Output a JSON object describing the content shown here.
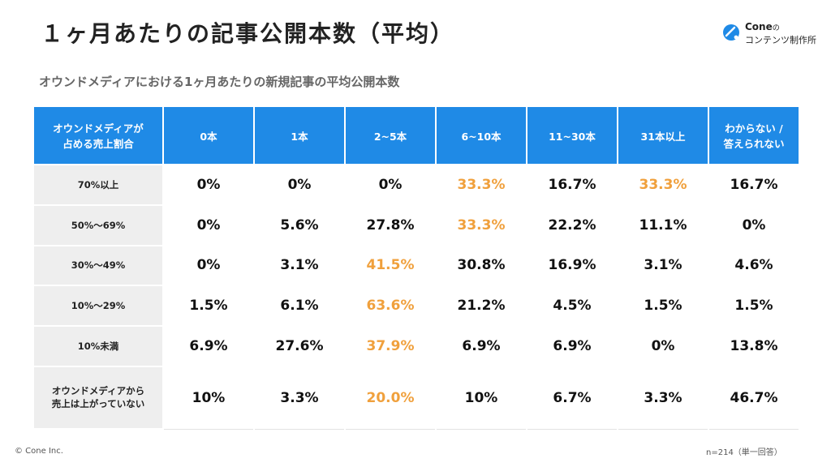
{
  "page": {
    "title": "１ヶ月あたりの記事公開本数（平均）",
    "subtitle": "オウンドメディアにおける1ヶ月あたりの新規記事の平均公開本数",
    "logo": {
      "brand": "Cone",
      "brand_suffix": "の",
      "tagline": "コンテンツ制作所"
    },
    "footer_left": "© Cone Inc.",
    "footer_right": "n=214（単一回答）"
  },
  "colors": {
    "header_blue": "#1f8ae6",
    "highlight_orange": "#f0a03c",
    "row_label_bg": "#eeeeee"
  },
  "chart_data": {
    "type": "table",
    "title": "１ヶ月あたりの記事公開本数（平均）",
    "row_header_label": [
      "オウンドメディアが",
      "占める売上割合"
    ],
    "columns": [
      "0本",
      "1本",
      "2~5本",
      "6~10本",
      "11~30本",
      "31本以上",
      "わからない / 答えられない"
    ],
    "rows": [
      {
        "label": [
          "70%以上"
        ],
        "values": [
          "0%",
          "0%",
          "0%",
          "33.3%",
          "16.7%",
          "33.3%",
          "16.7%"
        ],
        "highlight": [
          3,
          5
        ]
      },
      {
        "label": [
          "50%〜69%"
        ],
        "values": [
          "0%",
          "5.6%",
          "27.8%",
          "33.3%",
          "22.2%",
          "11.1%",
          "0%"
        ],
        "highlight": [
          3
        ]
      },
      {
        "label": [
          "30%〜49%"
        ],
        "values": [
          "0%",
          "3.1%",
          "41.5%",
          "30.8%",
          "16.9%",
          "3.1%",
          "4.6%"
        ],
        "highlight": [
          2
        ]
      },
      {
        "label": [
          "10%〜29%"
        ],
        "values": [
          "1.5%",
          "6.1%",
          "63.6%",
          "21.2%",
          "4.5%",
          "1.5%",
          "1.5%"
        ],
        "highlight": [
          2
        ]
      },
      {
        "label": [
          "10%未満"
        ],
        "values": [
          "6.9%",
          "27.6%",
          "37.9%",
          "6.9%",
          "6.9%",
          "0%",
          "13.8%"
        ],
        "highlight": [
          2
        ]
      },
      {
        "label": [
          "オウンドメディアから",
          "売上は上がっていない"
        ],
        "values": [
          "10%",
          "3.3%",
          "20.0%",
          "10%",
          "6.7%",
          "3.3%",
          "46.7%"
        ],
        "highlight": [
          2
        ]
      }
    ]
  }
}
